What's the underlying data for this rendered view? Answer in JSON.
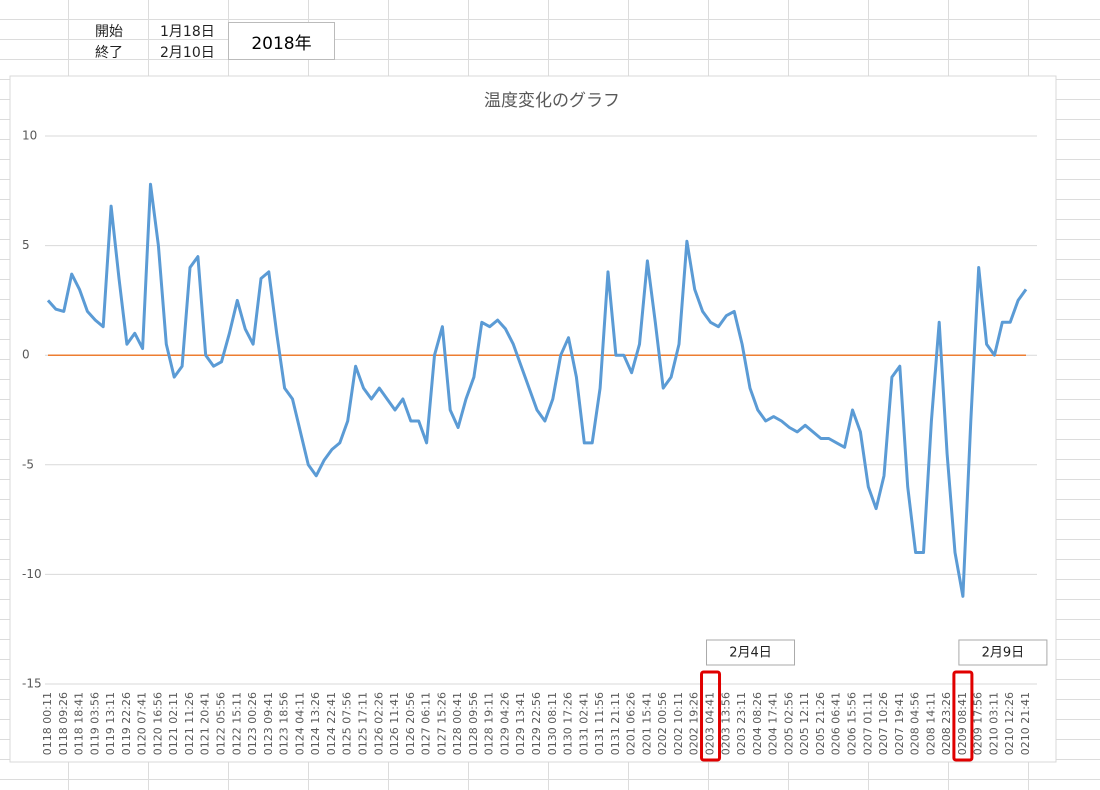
{
  "sheet": {
    "start_label": "開始",
    "start_date": "1月18日",
    "end_label": "終了",
    "end_date": "2月10日",
    "year": "2018年"
  },
  "chart_data": {
    "type": "line",
    "title": "温度変化のグラフ",
    "categories": [
      "0118 00:11",
      null,
      "0118 09:26",
      null,
      "0118 18:41",
      null,
      "0119 03:56",
      null,
      "0119 13:11",
      null,
      "0119 22:26",
      null,
      "0120 07:41",
      null,
      "0120 16:56",
      null,
      "0121 02:11",
      null,
      "0121 11:26",
      null,
      "0121 20:41",
      null,
      "0122 05:56",
      null,
      "0122 15:11",
      null,
      "0123 00:26",
      null,
      "0123 09:41",
      null,
      "0123 18:56",
      null,
      "0124 04:11",
      null,
      "0124 13:26",
      null,
      "0124 22:41",
      null,
      "0125 07:56",
      null,
      "0125 17:11",
      null,
      "0126 02:26",
      null,
      "0126 11:41",
      null,
      "0126 20:56",
      null,
      "0127 06:11",
      null,
      "0127 15:26",
      null,
      "0128 00:41",
      null,
      "0128 09:56",
      null,
      "0128 19:11",
      null,
      "0129 04:26",
      null,
      "0129 13:41",
      null,
      "0129 22:56",
      null,
      "0130 08:11",
      null,
      "0130 17:26",
      null,
      "0131 02:41",
      null,
      "0131 11:56",
      null,
      "0131 21:11",
      null,
      "0201 06:26",
      null,
      "0201 15:41",
      null,
      "0202 00:56",
      null,
      "0202 10:11",
      null,
      "0202 19:26",
      null,
      "0203 04:41",
      null,
      "0203 13:56",
      null,
      "0203 23:11",
      null,
      "0204 08:26",
      null,
      "0204 17:41",
      null,
      "0205 02:56",
      null,
      "0205 12:11",
      null,
      "0205 21:26",
      null,
      "0206 06:41",
      null,
      "0206 15:56",
      null,
      "0207 01:11",
      null,
      "0207 10:26",
      null,
      "0207 19:41",
      null,
      "0208 04:56",
      null,
      "0208 14:11",
      null,
      "0208 23:26",
      null,
      "0209 08:41",
      null,
      "0209 17:56",
      null,
      "0210 03:11",
      null,
      "0210 12:26",
      null,
      "0210 21:41"
    ],
    "series": [
      {
        "color": "#5b9bd5",
        "values": [
          2.5,
          2.1,
          2.0,
          3.7,
          3.0,
          2.0,
          1.6,
          1.3,
          6.8,
          3.5,
          0.5,
          1.0,
          0.3,
          7.8,
          5.0,
          0.5,
          -1.0,
          -0.5,
          4.0,
          4.5,
          0.0,
          -0.5,
          -0.3,
          1.0,
          2.5,
          1.2,
          0.5,
          3.5,
          3.8,
          1.0,
          -1.5,
          -2.0,
          -3.5,
          -5.0,
          -5.5,
          -4.8,
          -4.3,
          -4.0,
          -3.0,
          -0.5,
          -1.5,
          -2.0,
          -1.5,
          -2.0,
          -2.5,
          -2.0,
          -3.0,
          -3.0,
          -4.0,
          0.0,
          1.3,
          -2.5,
          -3.3,
          -2.0,
          -1.0,
          1.5,
          1.3,
          1.6,
          1.2,
          0.5,
          -0.5,
          -1.5,
          -2.5,
          -3.0,
          -2.0,
          0.0,
          0.8,
          -1.0,
          -4.0,
          -4.0,
          -1.5,
          3.8,
          0.0,
          0.0,
          -0.8,
          0.5,
          4.3,
          1.5,
          -1.5,
          -1.0,
          0.5,
          5.2,
          3.0,
          2.0,
          1.5,
          1.3,
          1.8,
          2.0,
          0.5,
          -1.5,
          -2.5,
          -3.0,
          -2.8,
          -3.0,
          -3.3,
          -3.5,
          -3.2,
          -3.5,
          -3.8,
          -3.8,
          -4.0,
          -4.2,
          -2.5,
          -3.5,
          -6.0,
          -7.0,
          -5.5,
          -1.0,
          -0.5,
          -6.0,
          -9.0,
          -9.0,
          -3.0,
          1.5,
          -4.5,
          -9.0,
          -11.0,
          -3.0,
          4.0,
          0.5,
          0.0,
          1.5,
          1.5,
          2.5,
          3.0
        ]
      },
      {
        "color": "#ed7d31",
        "values": [
          0,
          0,
          0,
          0,
          0,
          0,
          0,
          0,
          0,
          0,
          0,
          0,
          0,
          0,
          0,
          0,
          0,
          0,
          0,
          0,
          0,
          0,
          0,
          0,
          0,
          0,
          0,
          0,
          0,
          0,
          0,
          0,
          0,
          0,
          0,
          0,
          0,
          0,
          0,
          0,
          0,
          0,
          0,
          0,
          0,
          0,
          0,
          0,
          0,
          0,
          0,
          0,
          0,
          0,
          0,
          0,
          0,
          0,
          0,
          0,
          0,
          0,
          0,
          0,
          0,
          0,
          0,
          0,
          0,
          0,
          0,
          0,
          0,
          0,
          0,
          0,
          0,
          0,
          0,
          0,
          0,
          0,
          0,
          0,
          0,
          0,
          0,
          0,
          0,
          0,
          0,
          0,
          0,
          0,
          0,
          0,
          0,
          0,
          0,
          0,
          0,
          0,
          0,
          0,
          0,
          0,
          0,
          0,
          0,
          0,
          0,
          0,
          0,
          0,
          0,
          0,
          0,
          0,
          0,
          0,
          0,
          0,
          0,
          0,
          0
        ]
      }
    ],
    "ylim": [
      -15,
      10
    ],
    "yticks": [
      -15,
      -10,
      -5,
      0,
      5,
      10
    ],
    "grid": true,
    "annotations": [
      {
        "text": "2月4日",
        "target": "0203 04:41"
      },
      {
        "text": "2月9日",
        "target": "0209 08:41"
      }
    ]
  }
}
